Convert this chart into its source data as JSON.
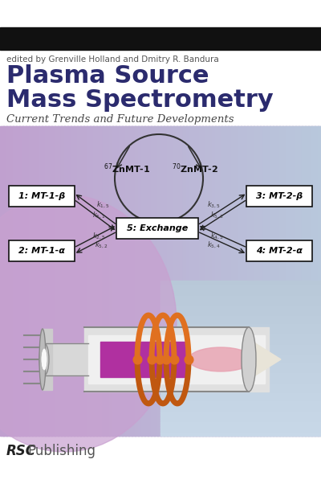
{
  "bg_color": "#ffffff",
  "black_bar_color": "#111111",
  "editor_text": "edited by Grenville Holland and Dmitry R. Bandura",
  "editor_color": "#555555",
  "editor_fontsize": 7.5,
  "title_line1": "Plasma Source",
  "title_line2": "Mass Spectrometry",
  "title_color": "#2b2b6e",
  "title_fontsize": 22,
  "subtitle": "Current Trends and Future Developments",
  "subtitle_color": "#444444",
  "subtitle_fontsize": 9.5,
  "cover_bg_top": "#c8dce8",
  "cover_bg_bottom": "#b8c8d8",
  "publisher_bold": "RSC",
  "publisher_normal": "Publishing",
  "publisher_fontsize": 12,
  "diagram_box1_label": "1: MT-1-β",
  "diagram_box2_label": "2: MT-1-α",
  "diagram_box3_label": "3: MT-2-β",
  "diagram_box4_label": "4: MT-2-α",
  "diagram_box5_label": "5: Exchange",
  "diagram_zn1_label": "$^{67}$ZnMT-1",
  "diagram_zn2_label": "$^{70}$ZnMT-2",
  "box_fill": "#ffffff",
  "box_edge": "#111111",
  "arrow_color": "#222222",
  "orange_color": "#e07020",
  "orange_dark": "#c05810",
  "purple_left": "#c0a0c8",
  "purple_right": "#b8c8dc",
  "instrument_outer": "#e0e0e0",
  "instrument_inner_white": "#f0f0f0",
  "instrument_plasma": "#c040a0",
  "instrument_glow": "#e090c0",
  "instrument_cone": "#d8d8d8"
}
